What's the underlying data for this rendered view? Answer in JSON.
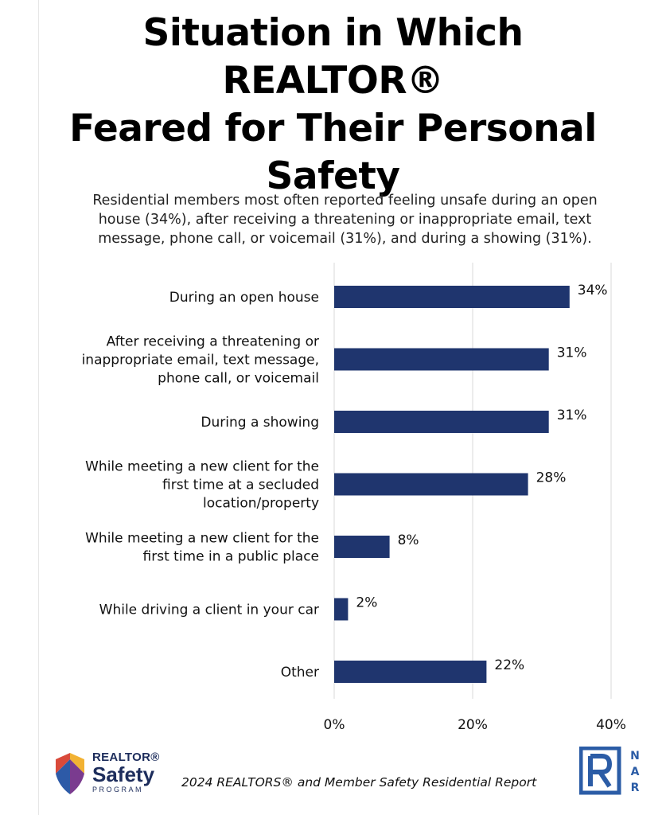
{
  "title": {
    "line1": "Situation in Which REALTOR®",
    "line2": "Feared for Their Personal",
    "line3": "Safety"
  },
  "subtitle": {
    "line1": "Residential members most often reported feeling unsafe during an open",
    "line2": "house (34%), after receiving a threatening or inappropriate email, text",
    "line3": "message, phone call, or voicemail (31%), and during a showing (31%)."
  },
  "chart_data": {
    "type": "bar",
    "orientation": "horizontal",
    "title": "Situation in Which REALTOR® Feared for Their Personal Safety",
    "categories": [
      [
        "During an open house"
      ],
      [
        "After receiving a threatening or",
        "inappropriate email, text message,",
        "phone call, or voicemail"
      ],
      [
        "During a showing"
      ],
      [
        "While meeting a new client for the",
        "first time at a secluded",
        "location/property"
      ],
      [
        "While meeting a new client for the",
        "first time in a public place"
      ],
      [
        "While driving a client in your car"
      ],
      [
        "Other"
      ]
    ],
    "values": [
      34,
      31,
      31,
      28,
      8,
      2,
      22
    ],
    "value_labels": [
      "34%",
      "31%",
      "31%",
      "28%",
      "8%",
      "2%",
      "22%"
    ],
    "xlim": [
      0,
      40
    ],
    "x_ticks": [
      0,
      20,
      40
    ],
    "x_tick_labels": [
      "0%",
      "20%",
      "40%"
    ],
    "grid": "vertical",
    "legend": "none",
    "bar_color": "#1f356e",
    "grid_color": "#d9d9d9"
  },
  "logo": {
    "word1": "REALTOR®",
    "word2": "Safety",
    "word3": "PROGRAM",
    "colors": [
      "#d94a3a",
      "#f2b233",
      "#2d5aa7",
      "#7a3b8f"
    ]
  },
  "source": "2024 REALTORS® and Member Safety Residential Report",
  "nar": {
    "letters": [
      "N",
      "A",
      "R"
    ],
    "color": "#2b5ca6"
  }
}
